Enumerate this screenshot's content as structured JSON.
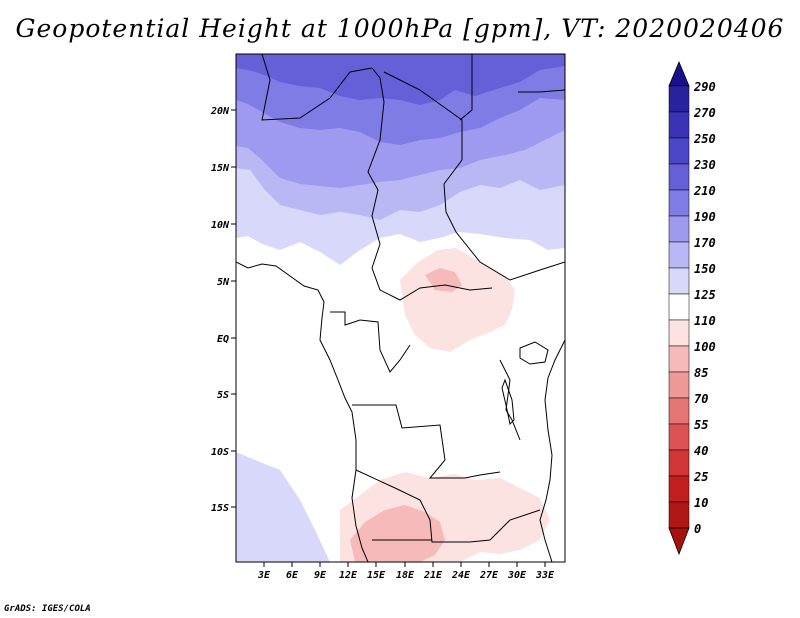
{
  "title": "Geopotential Height at 1000hPa [gpm], VT: 2020020406",
  "credit": "GrADS: IGES/COLA",
  "map": {
    "lon_range": [
      0,
      35
    ],
    "lat_range": [
      -20,
      25
    ],
    "lat_ticks": [
      "20N",
      "15N",
      "10N",
      "5N",
      "EQ",
      "5S",
      "10S",
      "15S"
    ],
    "lat_values": [
      20,
      15,
      10,
      5,
      0,
      -5,
      -10,
      -15
    ],
    "lon_ticks": [
      "3E",
      "6E",
      "9E",
      "12E",
      "15E",
      "18E",
      "21E",
      "24E",
      "27E",
      "30E",
      "33E"
    ],
    "lon_values": [
      3,
      6,
      9,
      12,
      15,
      18,
      21,
      24,
      27,
      30,
      33
    ]
  },
  "colorbar": {
    "labels": [
      "290",
      "270",
      "250",
      "230",
      "210",
      "190",
      "170",
      "150",
      "125",
      "110",
      "100",
      "85",
      "70",
      "55",
      "40",
      "25",
      "10",
      "0"
    ],
    "colors": [
      "#1a0f8c",
      "#28229f",
      "#3a34b5",
      "#4a47c8",
      "#6560d8",
      "#7f7ce6",
      "#9d9af0",
      "#b9b8f5",
      "#d8d8fb",
      "#ffffff",
      "#fde2e2",
      "#f6baba",
      "#ee9898",
      "#e67575",
      "#dd5252",
      "#d23535",
      "#c21f1f",
      "#a81010"
    ]
  }
}
